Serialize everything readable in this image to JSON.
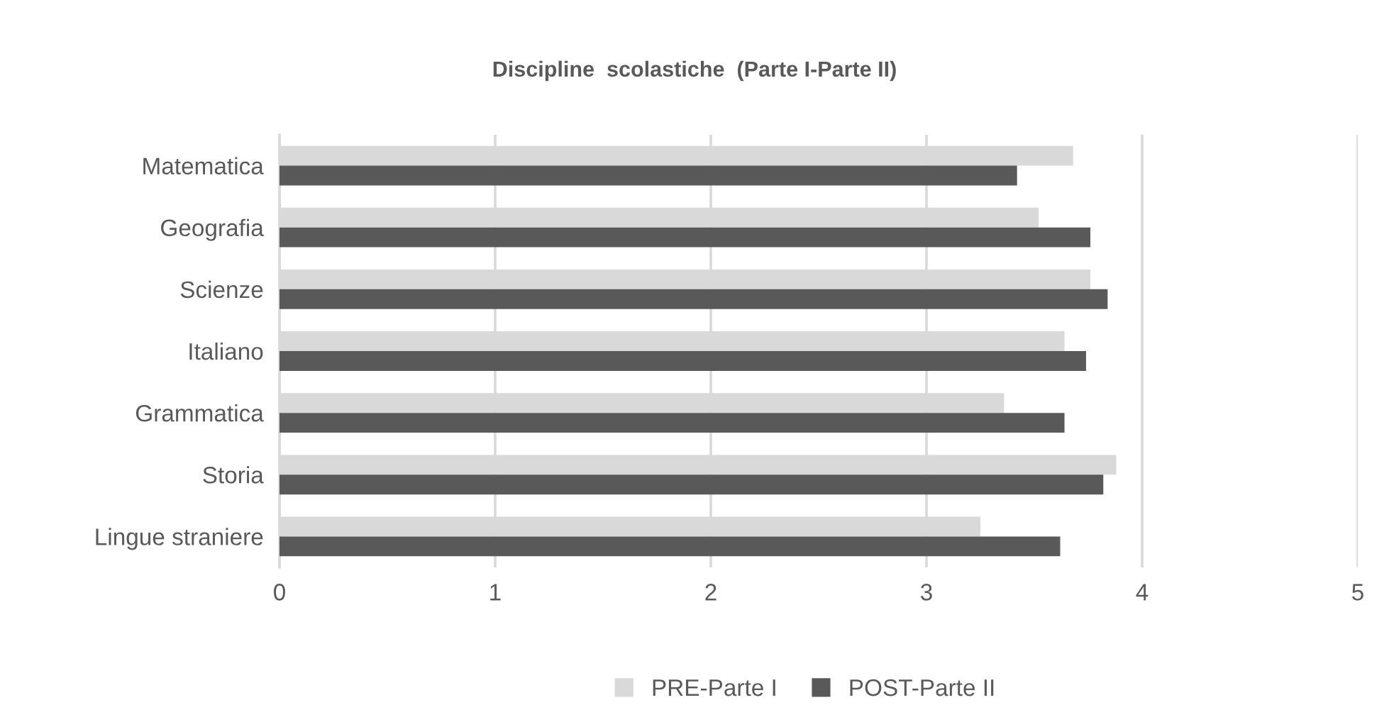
{
  "chart_data": {
    "type": "bar",
    "orientation": "horizontal",
    "title": "Discipline  scolastiche  (Parte I-Parte II)",
    "categories": [
      "Matematica",
      "Geografia",
      "Scienze",
      "Italiano",
      "Grammatica",
      "Storia",
      "Lingue straniere"
    ],
    "series": [
      {
        "name": "PRE-Parte I",
        "color": "#d9d9d9",
        "values": [
          3.68,
          3.52,
          3.76,
          3.64,
          3.36,
          3.88,
          3.25
        ]
      },
      {
        "name": "POST-Parte II",
        "color": "#595959",
        "values": [
          3.42,
          3.76,
          3.84,
          3.74,
          3.64,
          3.82,
          3.62
        ]
      }
    ],
    "xlim": [
      0,
      5
    ],
    "xticks": [
      0,
      1,
      2,
      3,
      4,
      5
    ],
    "grid": "x",
    "legend": "bottom"
  }
}
